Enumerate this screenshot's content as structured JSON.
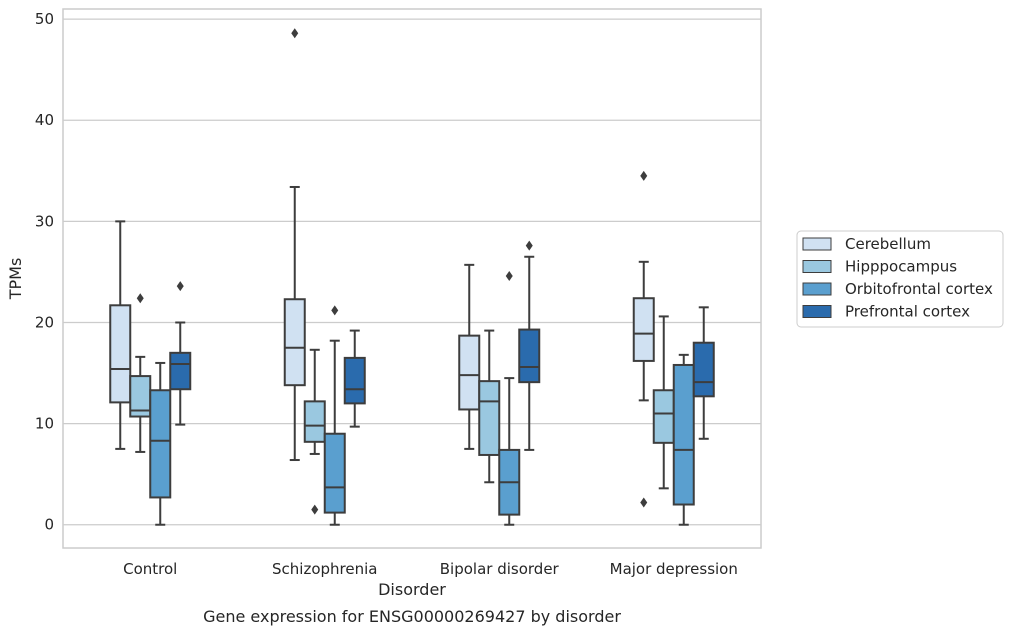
{
  "caption": "Gene expression for ENSG00000269427 by disorder",
  "chart_data": {
    "type": "box",
    "xlabel": "Disorder",
    "ylabel": "TPMs",
    "ylim": [
      -2.3,
      51
    ],
    "yticks": [
      0,
      10,
      20,
      30,
      40,
      50
    ],
    "grid": "horizontal",
    "legend_position": "right",
    "categories": [
      "Control",
      "Schizophrenia",
      "Bipolar disorder",
      "Major depression"
    ],
    "series": [
      {
        "name": "Cerebellum",
        "color": "#d0e1f2",
        "boxes": [
          {
            "whislo": 7.5,
            "q1": 12.1,
            "med": 15.4,
            "q3": 21.7,
            "whishi": 30.0,
            "fliers": []
          },
          {
            "whislo": 6.4,
            "q1": 13.8,
            "med": 17.5,
            "q3": 22.3,
            "whishi": 33.4,
            "fliers": [
              48.6
            ]
          },
          {
            "whislo": 7.5,
            "q1": 11.4,
            "med": 14.8,
            "q3": 18.7,
            "whishi": 25.7,
            "fliers": []
          },
          {
            "whislo": 12.3,
            "q1": 16.2,
            "med": 18.9,
            "q3": 22.4,
            "whishi": 26.0,
            "fliers": [
              34.5,
              2.2
            ]
          }
        ]
      },
      {
        "name": "Hipppocampus",
        "color": "#9ac8e0",
        "boxes": [
          {
            "whislo": 7.2,
            "q1": 10.7,
            "med": 11.3,
            "q3": 14.7,
            "whishi": 16.6,
            "fliers": [
              22.4
            ]
          },
          {
            "whislo": 7.0,
            "q1": 8.2,
            "med": 9.8,
            "q3": 12.2,
            "whishi": 17.3,
            "fliers": [
              1.5
            ]
          },
          {
            "whislo": 4.2,
            "q1": 6.9,
            "med": 12.2,
            "q3": 14.2,
            "whishi": 19.2,
            "fliers": []
          },
          {
            "whislo": 3.6,
            "q1": 8.1,
            "med": 11.0,
            "q3": 13.3,
            "whishi": 20.6,
            "fliers": []
          }
        ]
      },
      {
        "name": "Orbitofrontal cortex",
        "color": "#5a9fcf",
        "boxes": [
          {
            "whislo": 0.0,
            "q1": 2.7,
            "med": 8.3,
            "q3": 13.3,
            "whishi": 16.0,
            "fliers": []
          },
          {
            "whislo": 0.0,
            "q1": 1.2,
            "med": 3.7,
            "q3": 9.0,
            "whishi": 18.2,
            "fliers": [
              21.2
            ]
          },
          {
            "whislo": 0.0,
            "q1": 1.0,
            "med": 4.2,
            "q3": 7.4,
            "whishi": 14.5,
            "fliers": [
              24.6
            ]
          },
          {
            "whislo": 0.0,
            "q1": 2.0,
            "med": 7.4,
            "q3": 15.8,
            "whishi": 16.8,
            "fliers": []
          }
        ]
      },
      {
        "name": "Prefrontal cortex",
        "color": "#2a6bad",
        "boxes": [
          {
            "whislo": 9.9,
            "q1": 13.4,
            "med": 15.9,
            "q3": 17.0,
            "whishi": 20.0,
            "fliers": [
              23.6
            ]
          },
          {
            "whislo": 9.7,
            "q1": 12.0,
            "med": 13.4,
            "q3": 16.5,
            "whishi": 19.2,
            "fliers": []
          },
          {
            "whislo": 7.4,
            "q1": 14.1,
            "med": 15.6,
            "q3": 19.3,
            "whishi": 26.5,
            "fliers": [
              27.6
            ]
          },
          {
            "whislo": 8.5,
            "q1": 12.7,
            "med": 14.1,
            "q3": 18.0,
            "whishi": 21.5,
            "fliers": []
          }
        ]
      }
    ]
  }
}
